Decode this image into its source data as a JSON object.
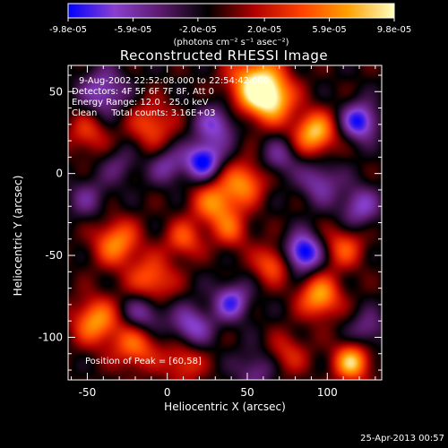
{
  "colorbar": {
    "tick_labels": [
      "-9.8e-05",
      "-5.9e-05",
      "-2.0e-05",
      "2.0e-05",
      "5.9e-05",
      "9.8e-05"
    ],
    "unit_label": "(photons cm⁻² s⁻¹ asec⁻²)",
    "range": [
      -9.8e-05,
      9.8e-05
    ],
    "colors": [
      "#0000ff",
      "#8a3fd0",
      "#5a1a6a",
      "#000000",
      "#b00000",
      "#ff4000",
      "#ffa000",
      "#ffffc0"
    ]
  },
  "chart_data": {
    "type": "heatmap",
    "title": "Reconstructed RHESSI Image",
    "xlabel": "Heliocentric X (arcsec)",
    "ylabel": "Heliocentric Y (arcsec)",
    "xlim": [
      -62,
      134
    ],
    "ylim": [
      -126,
      66
    ],
    "x_ticks": [
      -50,
      0,
      50,
      100
    ],
    "y_ticks": [
      -100,
      -50,
      0,
      50
    ],
    "x_tick_labels": [
      "-50",
      "0",
      "50",
      "100"
    ],
    "y_tick_labels": [
      "-100",
      "-50",
      "0",
      "50"
    ],
    "peak": [
      60,
      58
    ],
    "blobs": [
      {
        "x": 55,
        "y": 55,
        "v": 1.0,
        "s": 12
      },
      {
        "x": 65,
        "y": 45,
        "v": 0.8,
        "s": 10
      },
      {
        "x": 92,
        "y": 25,
        "v": 0.95,
        "s": 9
      },
      {
        "x": 30,
        "y": -18,
        "v": 0.75,
        "s": 10
      },
      {
        "x": 48,
        "y": -5,
        "v": 0.7,
        "s": 9
      },
      {
        "x": -32,
        "y": -42,
        "v": 0.75,
        "s": 10
      },
      {
        "x": -10,
        "y": -65,
        "v": 0.65,
        "s": 10
      },
      {
        "x": 95,
        "y": -75,
        "v": 0.85,
        "s": 9
      },
      {
        "x": 65,
        "y": -55,
        "v": 0.6,
        "s": 8
      },
      {
        "x": 110,
        "y": -45,
        "v": 0.55,
        "s": 9
      },
      {
        "x": -45,
        "y": -90,
        "v": 0.8,
        "s": 10
      },
      {
        "x": -20,
        "y": -105,
        "v": 0.65,
        "s": 10
      },
      {
        "x": 115,
        "y": -115,
        "v": 0.95,
        "s": 8
      },
      {
        "x": 10,
        "y": -115,
        "v": 0.5,
        "s": 9
      },
      {
        "x": 75,
        "y": -110,
        "v": 0.4,
        "s": 9
      },
      {
        "x": -50,
        "y": 25,
        "v": 0.45,
        "s": 9
      },
      {
        "x": -10,
        "y": 30,
        "v": 0.55,
        "s": 10
      },
      {
        "x": 10,
        "y": -40,
        "v": 0.55,
        "s": 8
      },
      {
        "x": 40,
        "y": -35,
        "v": 0.45,
        "s": 8
      },
      {
        "x": 85,
        "y": -48,
        "v": -1.0,
        "s": 8
      },
      {
        "x": 120,
        "y": 32,
        "v": -0.85,
        "s": 8
      },
      {
        "x": 22,
        "y": 8,
        "v": -0.9,
        "s": 8
      },
      {
        "x": 30,
        "y": 30,
        "v": -0.6,
        "s": 9
      },
      {
        "x": -40,
        "y": 50,
        "v": -0.6,
        "s": 10
      },
      {
        "x": 40,
        "y": -78,
        "v": -0.7,
        "s": 8
      },
      {
        "x": 15,
        "y": -93,
        "v": -0.6,
        "s": 9
      },
      {
        "x": -15,
        "y": -85,
        "v": -0.55,
        "s": 9
      },
      {
        "x": 120,
        "y": -20,
        "v": -0.55,
        "s": 9
      },
      {
        "x": 95,
        "y": -5,
        "v": -0.5,
        "s": 9
      },
      {
        "x": 0,
        "y": 5,
        "v": -0.45,
        "s": 8
      },
      {
        "x": 70,
        "y": 10,
        "v": -0.4,
        "s": 8
      },
      {
        "x": -50,
        "y": -15,
        "v": -0.35,
        "s": 9
      },
      {
        "x": 55,
        "y": -120,
        "v": -0.4,
        "s": 9
      },
      {
        "x": 125,
        "y": -95,
        "v": -0.4,
        "s": 8
      },
      {
        "x": -30,
        "y": 5,
        "v": -0.3,
        "s": 8
      }
    ]
  },
  "info": {
    "line1": "9-Aug-2002 22:52:08.000 to 22:54:42.000",
    "line2": "Detectors: 4F 5F 6F 7F 8F, Att 0",
    "line3": "Energy Range: 12.0 - 25.0 keV",
    "line4": "Clean     Total counts: 3.16E+03",
    "peak_label": "Position of Peak = [60,58]"
  },
  "footer": {
    "timestamp": "25-Apr-2013 00:57"
  }
}
